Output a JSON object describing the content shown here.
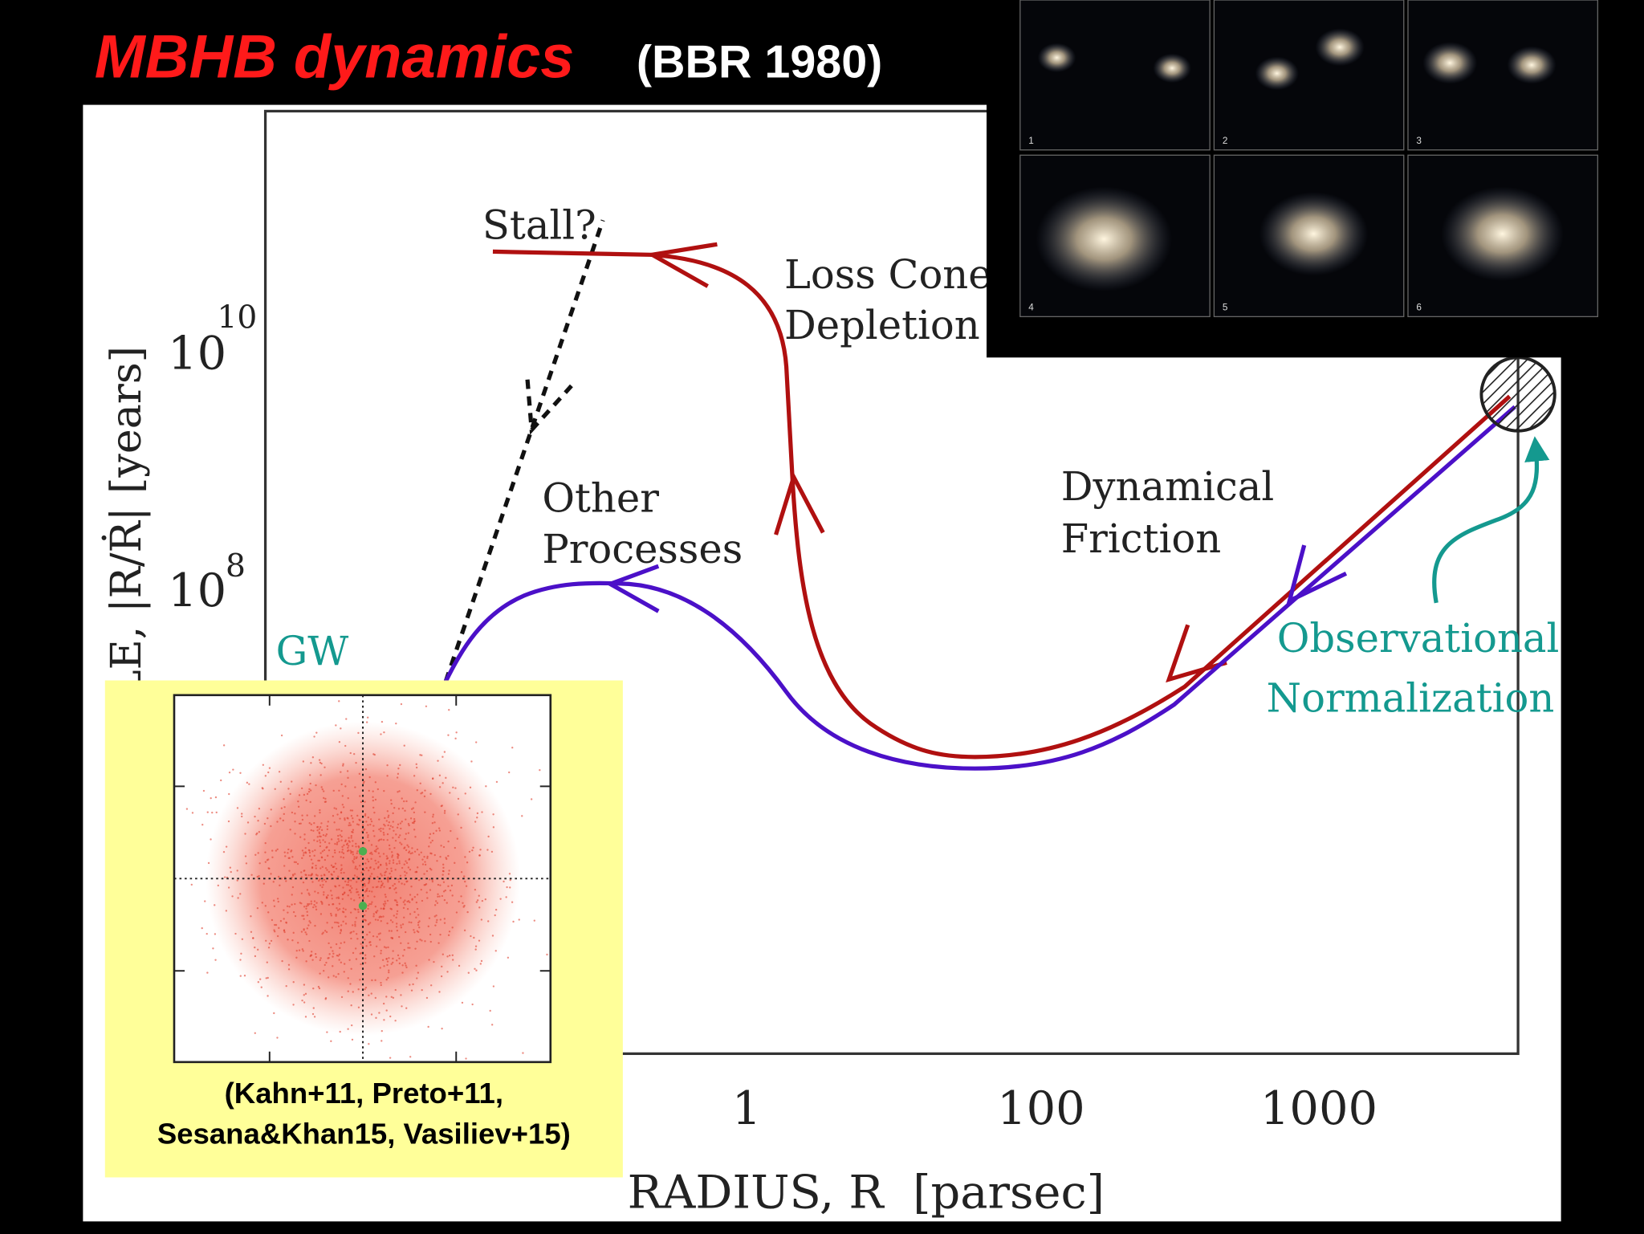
{
  "title": "MBHB dynamics",
  "subtitle": "(BBR 1980)",
  "y_axis": {
    "label": "TIME SCALE, |R/Ṙ| [years]",
    "ticks": [
      {
        "base": "10",
        "exponent": "10"
      },
      {
        "base": "10",
        "exponent": "8"
      }
    ]
  },
  "x_axis": {
    "label": "RADIUS, R  [parsec]",
    "ticks": [
      "1",
      "100",
      "1000"
    ]
  },
  "annotations": {
    "stall": "Stall?",
    "loss_cone": [
      "Loss Cone",
      "Depletion"
    ],
    "other": [
      "Other",
      "Processes"
    ],
    "friction": [
      "Dynamical",
      "Friction"
    ],
    "gw": "GW",
    "observational": [
      "Observational",
      "Normalization"
    ]
  },
  "galaxy_panels": [
    "1",
    "2",
    "3",
    "4",
    "5",
    "6"
  ],
  "inset": {
    "caption": [
      "(Kahn+11, Preto+11,",
      "Sesana&Khan15, Vasiliev+15)"
    ]
  }
}
